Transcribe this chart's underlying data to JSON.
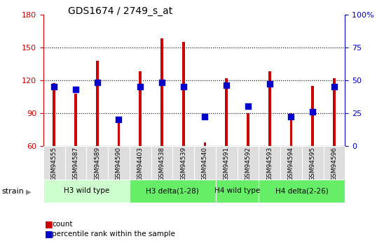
{
  "title": "GDS1674 / 2749_s_at",
  "samples": [
    "GSM94555",
    "GSM94587",
    "GSM94589",
    "GSM94590",
    "GSM94403",
    "GSM94538",
    "GSM94539",
    "GSM94540",
    "GSM94591",
    "GSM94592",
    "GSM94593",
    "GSM94594",
    "GSM94595",
    "GSM94596"
  ],
  "count_values": [
    117,
    108,
    138,
    82,
    128,
    158,
    155,
    63,
    122,
    90,
    128,
    90,
    115,
    122
  ],
  "percentile_values": [
    45,
    43,
    48,
    20,
    45,
    48,
    45,
    22,
    46,
    30,
    47,
    22,
    26,
    45
  ],
  "groups": [
    {
      "label": "H3 wild type",
      "start": 0,
      "end": 4,
      "color": "#ccffcc"
    },
    {
      "label": "H3 delta(1-28)",
      "start": 4,
      "end": 8,
      "color": "#66ee66"
    },
    {
      "label": "H4 wild type",
      "start": 8,
      "end": 10,
      "color": "#66ee66"
    },
    {
      "label": "H4 delta(2-26)",
      "start": 10,
      "end": 14,
      "color": "#66ee66"
    }
  ],
  "ylim_left": [
    60,
    180
  ],
  "ylim_right": [
    0,
    100
  ],
  "yticks_left": [
    60,
    90,
    120,
    150,
    180
  ],
  "yticks_right": [
    0,
    25,
    50,
    75,
    100
  ],
  "bar_color": "#cc0000",
  "dot_color": "#0000cc",
  "bar_width": 0.12,
  "dot_size": 28,
  "background_color": "#ffffff"
}
